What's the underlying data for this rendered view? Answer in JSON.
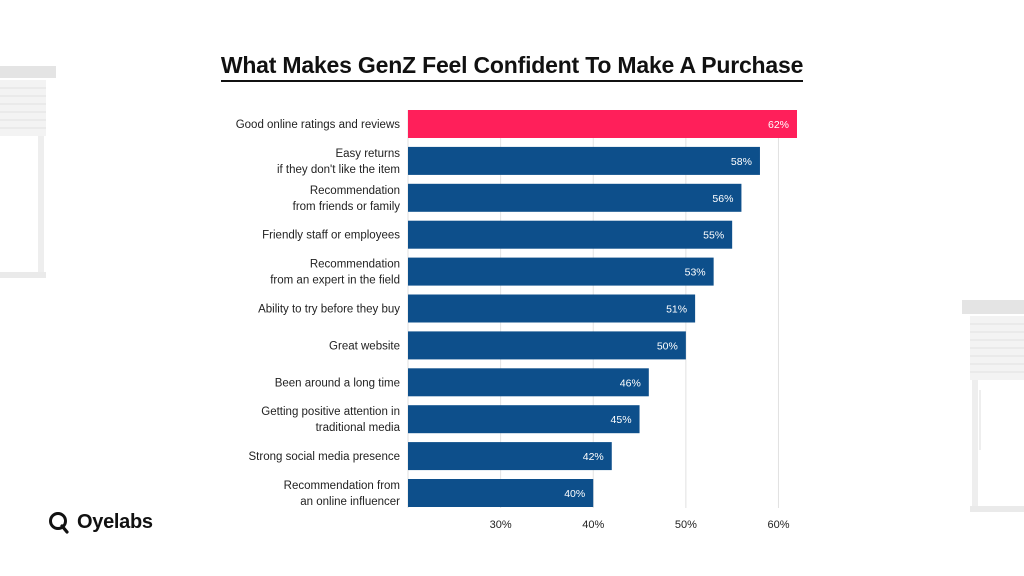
{
  "brand": {
    "name": "Oyelabs"
  },
  "colors": {
    "highlight": "#ff1f5a",
    "bar": "#0d4f8b",
    "grid": "#e2e2e2",
    "label": "#222222"
  },
  "chart_data": {
    "type": "bar",
    "orientation": "horizontal",
    "title": "What Makes GenZ Feel Confident To Make A Purchase",
    "xlabel": "",
    "ylabel": "",
    "categories": [
      [
        "Good online ratings and reviews"
      ],
      [
        "Easy returns",
        "if they don't like the item"
      ],
      [
        "Recommendation",
        "from friends or family"
      ],
      [
        "Friendly staff or employees"
      ],
      [
        "Recommendation",
        "from an expert in the field"
      ],
      [
        "Ability to try before they buy"
      ],
      [
        "Great website"
      ],
      [
        "Been around a long time"
      ],
      [
        "Getting positive attention in",
        "traditional media"
      ],
      [
        "Strong social media presence"
      ],
      [
        "Recommendation from",
        "an online influencer"
      ]
    ],
    "values": [
      62,
      58,
      56,
      55,
      53,
      51,
      50,
      46,
      45,
      42,
      40
    ],
    "value_labels": [
      "62%",
      "58%",
      "56%",
      "55%",
      "53%",
      "51%",
      "50%",
      "46%",
      "45%",
      "42%",
      "40%"
    ],
    "highlight_index": 0,
    "xlim": [
      20,
      62
    ],
    "xticks": [
      30,
      40,
      50,
      60
    ],
    "xtick_labels": [
      "30%",
      "40%",
      "50%",
      "60%"
    ],
    "grid": true,
    "legend": "none"
  }
}
